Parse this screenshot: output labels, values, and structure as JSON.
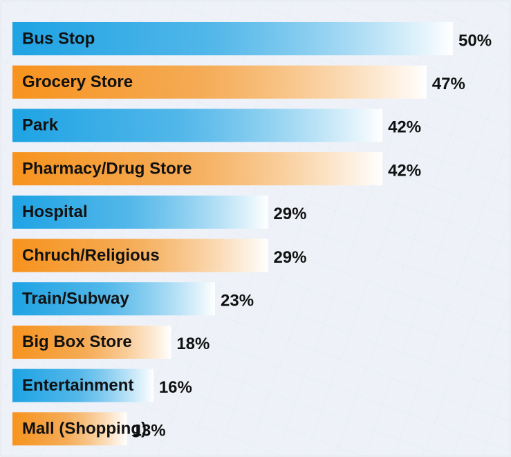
{
  "chart_data": {
    "type": "bar",
    "orientation": "horizontal",
    "categories": [
      "Bus Stop",
      "Grocery Store",
      "Park",
      "Pharmacy/Drug Store",
      "Hospital",
      "Chruch/Religious",
      "Train/Subway",
      "Big Box Store",
      "Entertainment",
      "Mall (Shopping)"
    ],
    "values": [
      50,
      47,
      42,
      42,
      29,
      29,
      23,
      18,
      16,
      13
    ],
    "value_labels": [
      "50%",
      "47%",
      "42%",
      "42%",
      "29%",
      "29%",
      "23%",
      "18%",
      "16%",
      "13%"
    ],
    "colors": [
      "#1ea3e4",
      "#f7931e",
      "#1ea3e4",
      "#f7931e",
      "#1ea3e4",
      "#f7931e",
      "#1ea3e4",
      "#f7931e",
      "#1ea3e4",
      "#f7931e"
    ]
  }
}
